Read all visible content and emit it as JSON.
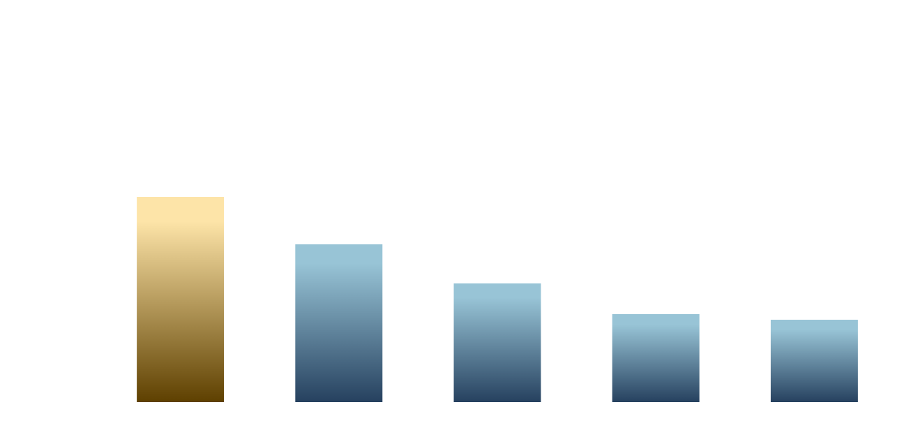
{
  "chart_data": {
    "type": "bar",
    "categories": [
      null,
      null,
      null,
      null,
      null
    ],
    "values": [
      294,
      226,
      170,
      126,
      118
    ],
    "colors": [
      [
        "#fde4a8",
        "#5e4000"
      ],
      [
        "#98c4d6",
        "#26415f"
      ],
      [
        "#98c4d6",
        "#26415f"
      ],
      [
        "#98c4d6",
        "#26415f"
      ],
      [
        "#98c4d6",
        "#26415f"
      ]
    ],
    "ylim": [
      0,
      576
    ]
  }
}
